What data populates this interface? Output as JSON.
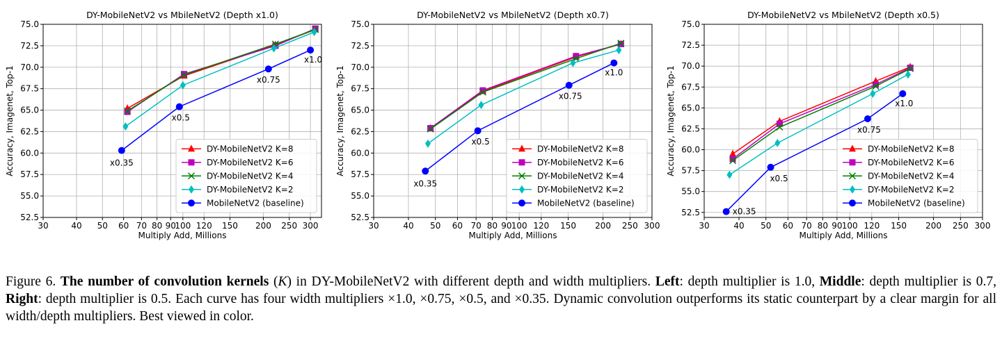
{
  "chart_data": [
    {
      "type": "line",
      "title": "DY-MobileNetV2 vs MbileNetV2 (Depth x1.0)",
      "xlabel": "Multiply Add, Millions",
      "ylabel": "Accuracy, Imagenet, Top-1",
      "xscale": "log",
      "grid": true,
      "legend": "lower right",
      "xlim": [
        30,
        330
      ],
      "ylim": [
        52.5,
        75
      ],
      "xticks": [
        30,
        40,
        50,
        60,
        70,
        80,
        90,
        100,
        120,
        150,
        200,
        250,
        300
      ],
      "yticks": [
        52.5,
        {
          "value": 55,
          "label": "55.0"
        },
        57.5,
        {
          "value": 60,
          "label": "60.0"
        },
        62.5,
        {
          "value": 65,
          "label": "65.0"
        },
        67.5,
        {
          "value": 70,
          "label": "70.0"
        },
        72.5,
        {
          "value": 75,
          "label": "75.0"
        }
      ],
      "series": [
        {
          "name": "DY-MobileNetV2 K=8",
          "color": "#ff0000",
          "marker": "triangle",
          "x": [
            62,
            101,
            222,
            313
          ],
          "values": [
            65.2,
            69.0,
            72.6,
            74.4
          ]
        },
        {
          "name": "DY-MobileNetV2 K=6",
          "color": "#bf00bf",
          "marker": "square",
          "x": [
            62,
            101,
            222,
            313
          ],
          "values": [
            64.8,
            69.2,
            72.5,
            74.5
          ]
        },
        {
          "name": "DY-MobileNetV2 K=4",
          "color": "#008000",
          "marker": "x",
          "x": [
            62,
            101,
            222,
            313
          ],
          "values": [
            64.9,
            69.1,
            72.7,
            74.4
          ]
        },
        {
          "name": "DY-MobileNetV2 K=2",
          "color": "#00bfbf",
          "marker": "diamond",
          "x": [
            61,
            100,
            219,
            310
          ],
          "values": [
            63.1,
            67.9,
            72.2,
            74.1
          ]
        },
        {
          "name": "MobileNetV2 (baseline)",
          "color": "#0000ff",
          "marker": "circle",
          "x": [
            59,
            97,
            209,
            300
          ],
          "values": [
            60.3,
            65.4,
            69.8,
            72.0
          ],
          "annotations": [
            "x0.35",
            "x0.5",
            "x0.75",
            "x1.0"
          ]
        }
      ]
    },
    {
      "type": "line",
      "title": "DY-MobileNetV2 vs MbileNetV2 (Depth x0.7)",
      "xlabel": "Multiply Add, Millions",
      "ylabel": "Accuracy, Imagenet, Top-1",
      "xscale": "log",
      "grid": true,
      "legend": "lower right",
      "xlim": [
        30,
        300
      ],
      "ylim": [
        52.5,
        75
      ],
      "xticks": [
        30,
        40,
        50,
        60,
        70,
        80,
        90,
        100,
        120,
        150,
        200,
        250,
        300
      ],
      "yticks": [
        52.5,
        {
          "value": 55,
          "label": "55.0"
        },
        57.5,
        {
          "value": 60,
          "label": "60.0"
        },
        62.5,
        {
          "value": 65,
          "label": "65.0"
        },
        67.5,
        {
          "value": 70,
          "label": "70.0"
        },
        72.5,
        {
          "value": 75,
          "label": "75.0"
        }
      ],
      "series": [
        {
          "name": "DY-MobileNetV2 K=8",
          "color": "#ff0000",
          "marker": "triangle",
          "x": [
            48,
            74,
            160,
            232
          ],
          "values": [
            62.9,
            67.2,
            71.2,
            72.7
          ]
        },
        {
          "name": "DY-MobileNetV2 K=6",
          "color": "#bf00bf",
          "marker": "square",
          "x": [
            48,
            74,
            160,
            232
          ],
          "values": [
            62.9,
            67.3,
            71.3,
            72.7
          ]
        },
        {
          "name": "DY-MobileNetV2 K=4",
          "color": "#008000",
          "marker": "x",
          "x": [
            48,
            74,
            160,
            232
          ],
          "values": [
            62.8,
            67.1,
            71.0,
            72.8
          ]
        },
        {
          "name": "DY-MobileNetV2 K=2",
          "color": "#00bfbf",
          "marker": "diamond",
          "x": [
            47,
            73,
            156,
            228
          ],
          "values": [
            61.1,
            65.6,
            70.5,
            72.0
          ]
        },
        {
          "name": "MobileNetV2 (baseline)",
          "color": "#0000ff",
          "marker": "circle",
          "x": [
            46,
            71,
            151,
            219
          ],
          "values": [
            57.9,
            62.6,
            67.9,
            70.5
          ],
          "annotations": [
            "x0.35",
            "x0.5",
            "x0.75",
            "x1.0"
          ]
        }
      ]
    },
    {
      "type": "line",
      "title": "DY-MobileNetV2 vs MbileNetV2 (Depth x0.5)",
      "xlabel": "Multiply Add, Millions",
      "ylabel": "Accuracy, Imagenet, Top-1",
      "xscale": "log",
      "grid": true,
      "legend": "lower right",
      "xlim": [
        30,
        300
      ],
      "ylim": [
        51.9,
        75
      ],
      "xticks": [
        30,
        40,
        50,
        60,
        70,
        80,
        90,
        100,
        120,
        150,
        200,
        250,
        300
      ],
      "yticks": [
        52.5,
        {
          "value": 55,
          "label": "55.0"
        },
        57.5,
        {
          "value": 60,
          "label": "60.0"
        },
        62.5,
        {
          "value": 65,
          "label": "65.0"
        },
        67.5,
        {
          "value": 70,
          "label": "70.0"
        },
        72.5,
        {
          "value": 75,
          "label": "75.0"
        }
      ],
      "series": [
        {
          "name": "DY-MobileNetV2 K=8",
          "color": "#ff0000",
          "marker": "triangle",
          "x": [
            38,
            56,
            124,
            165
          ],
          "values": [
            59.5,
            63.4,
            68.2,
            69.9
          ]
        },
        {
          "name": "DY-MobileNetV2 K=6",
          "color": "#bf00bf",
          "marker": "square",
          "x": [
            38,
            56,
            124,
            165
          ],
          "values": [
            58.9,
            63.1,
            67.8,
            69.8
          ]
        },
        {
          "name": "DY-MobileNetV2 K=4",
          "color": "#008000",
          "marker": "x",
          "x": [
            38,
            56,
            124,
            165
          ],
          "values": [
            58.7,
            62.7,
            67.6,
            69.7
          ]
        },
        {
          "name": "DY-MobileNetV2 K=2",
          "color": "#00bfbf",
          "marker": "diamond",
          "x": [
            37,
            55,
            121,
            162
          ],
          "values": [
            57.0,
            60.8,
            66.7,
            69.0
          ]
        },
        {
          "name": "MobileNetV2 (baseline)",
          "color": "#0000ff",
          "marker": "circle",
          "x": [
            36,
            52,
            116,
            155
          ],
          "values": [
            52.6,
            57.9,
            63.7,
            66.7
          ],
          "annotations": [
            "x0.35",
            "x0.5",
            "x0.75",
            "x1.0"
          ]
        }
      ]
    }
  ],
  "caption": [
    "Figure 6. ",
    "The number of convolution kernels",
    " (",
    "K",
    ") in DY-MobileNetV2 with different depth and width multipliers. ",
    "Left",
    ": depth multiplier is 1.0, ",
    "Middle",
    ": depth multiplier is 0.7, ",
    "Right",
    ": depth multiplier is 0.5. Each curve has four width multipliers ×1.0, ×0.75, ×0.5, and ×0.35. Dynamic convolution outperforms its static counterpart by a clear margin for all width/depth multipliers. Best viewed in color."
  ]
}
